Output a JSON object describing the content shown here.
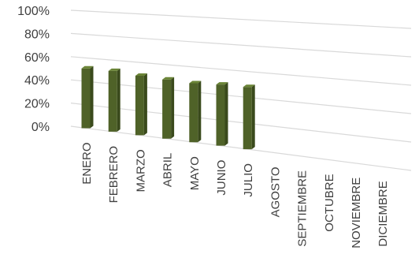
{
  "chart_data": {
    "type": "bar",
    "categories": [
      "ENERO",
      "FEBRERO",
      "MARZO",
      "ABRIL",
      "MAYO",
      "JUNIO",
      "JULIO",
      "AGOSTO",
      "SEPTIEMBRE",
      "OCTUBRE",
      "NOVIEMBRE",
      "DICIEMBRE"
    ],
    "values": [
      51,
      51,
      49,
      48,
      47,
      48,
      48,
      null,
      null,
      null,
      null,
      null
    ],
    "y_ticks": [
      "0%",
      "20%",
      "40%",
      "60%",
      "80%",
      "100%"
    ],
    "ylim": [
      0,
      100
    ],
    "grid": true,
    "legend": "none",
    "bar_color": "#4f6228",
    "bar_side_color": "#3a4a1c",
    "bar_top_color": "#6a8436",
    "grid_color": "#d9d9d9",
    "label_color": "#404040"
  }
}
